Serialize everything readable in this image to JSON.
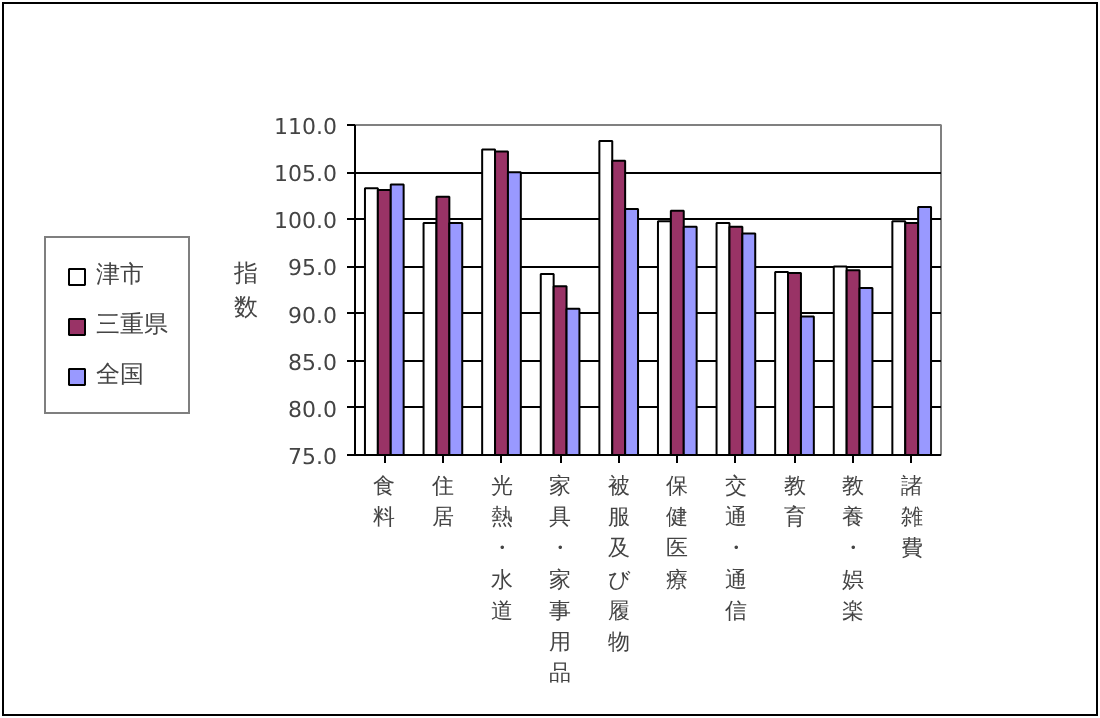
{
  "chart_data": {
    "type": "bar",
    "ylabel": "指数",
    "categories": [
      "食料",
      "住居",
      "光熱・水道",
      "家具・家事用品",
      "被服及び履物",
      "保健医療",
      "交通・通信",
      "教育",
      "教養・娯楽",
      "諸雑費"
    ],
    "series": [
      {
        "name": "津市",
        "color": "#ffffff",
        "values": [
          103.3,
          99.6,
          107.4,
          94.2,
          108.3,
          99.8,
          99.6,
          94.4,
          95.0,
          99.8
        ]
      },
      {
        "name": "三重県",
        "color": "#993366",
        "values": [
          103.1,
          102.4,
          107.2,
          92.9,
          106.2,
          100.9,
          99.2,
          94.3,
          94.6,
          99.6
        ]
      },
      {
        "name": "全国",
        "color": "#9999ff",
        "values": [
          103.7,
          99.6,
          105.0,
          90.5,
          101.1,
          99.2,
          98.5,
          89.7,
          92.7,
          101.3
        ]
      }
    ],
    "ylim": [
      75,
      110
    ],
    "yticks": [
      {
        "value": 75,
        "label": "75.0"
      },
      {
        "value": 80,
        "label": "80.0"
      },
      {
        "value": 85,
        "label": "85.0"
      },
      {
        "value": 90,
        "label": "90.0"
      },
      {
        "value": 95,
        "label": "95.0"
      },
      {
        "value": 100,
        "label": "100.0"
      },
      {
        "value": 105,
        "label": "105.0"
      },
      {
        "value": 110,
        "label": "110.0"
      }
    ],
    "grid": "y",
    "legend": "bottom left"
  }
}
